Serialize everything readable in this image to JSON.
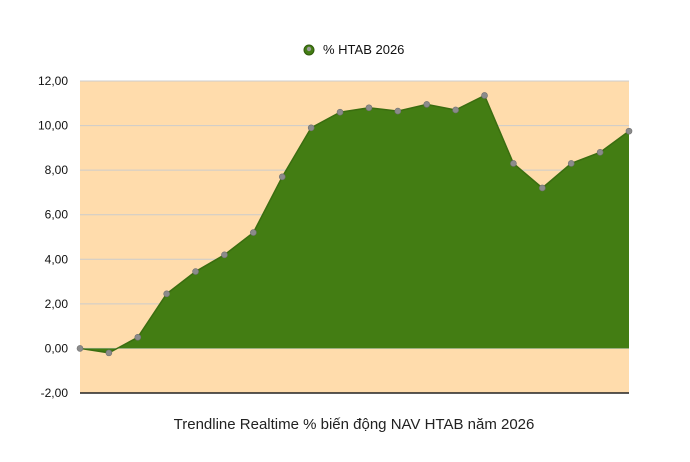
{
  "chart_data": {
    "type": "area",
    "title": "",
    "xlabel": "Trendline Realtime % biến động NAV HTAB năm 2026",
    "ylabel": "",
    "ylim": [
      -2,
      12
    ],
    "yticks": [
      -2,
      0,
      2,
      4,
      6,
      8,
      10,
      12
    ],
    "ytick_labels": [
      "-2,00",
      "0,00",
      "2,00",
      "4,00",
      "6,00",
      "8,00",
      "10,00",
      "12,00"
    ],
    "grid": true,
    "legend_position": "top-center",
    "series": [
      {
        "name": "% HTAB 2026",
        "color": "#437d13",
        "values": [
          0,
          -0.2,
          0.5,
          2.45,
          3.45,
          4.2,
          5.2,
          7.7,
          9.9,
          10.6,
          10.8,
          10.65,
          10.95,
          10.7,
          11.35,
          8.3,
          7.2,
          8.3,
          8.8,
          9.75
        ]
      }
    ],
    "colors": {
      "plot_background": "#ffdcac",
      "area_fill": "#437d13",
      "area_line": "#3a6d10",
      "marker": "#8b8b8b",
      "gridline": "#cccccc",
      "baseline": "#222222"
    }
  }
}
